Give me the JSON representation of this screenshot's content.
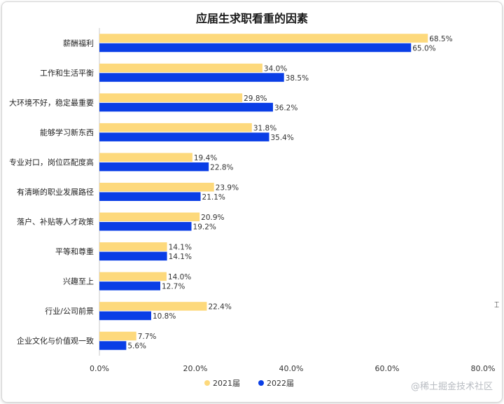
{
  "chart_data": {
    "type": "bar",
    "orientation": "horizontal",
    "title": "应届生求职看重的因素",
    "categories": [
      "薪酬福利",
      "工作和生活平衡",
      "大环境不好，稳定最重要",
      "能够学习新东西",
      "专业对口，岗位匹配度高",
      "有清晰的职业发展路径",
      "落户、补贴等人才政策",
      "平等和尊重",
      "兴趣至上",
      "行业/公司前景",
      "企业文化与价值观一致"
    ],
    "series": [
      {
        "name": "2021届",
        "color": "#fdd97c",
        "values": [
          68.5,
          34.0,
          29.8,
          31.8,
          19.4,
          23.9,
          20.9,
          14.1,
          14.0,
          22.4,
          7.7
        ],
        "labels": [
          "68.5%",
          "34.0%",
          "29.8%",
          "31.8%",
          "19.4%",
          "23.9%",
          "20.9%",
          "14.1%",
          "14.0%",
          "22.4%",
          "7.7%"
        ]
      },
      {
        "name": "2022届",
        "color": "#0a3ee6",
        "values": [
          65.0,
          38.5,
          36.2,
          35.4,
          22.8,
          21.1,
          19.2,
          14.1,
          12.7,
          10.8,
          5.6
        ],
        "labels": [
          "65.0%",
          "38.5%",
          "36.2%",
          "35.4%",
          "22.8%",
          "21.1%",
          "19.2%",
          "14.1%",
          "12.7%",
          "10.8%",
          "5.6%"
        ]
      }
    ],
    "xlim": [
      0,
      80
    ],
    "xticks": [
      0,
      20,
      40,
      60,
      80
    ],
    "xtick_labels": [
      "0.0%",
      "20.0%",
      "40.0%",
      "60.0%",
      "80.0%"
    ],
    "legend": "bottom-center",
    "grid": false
  },
  "watermark": "@稀土掘金技术社区"
}
